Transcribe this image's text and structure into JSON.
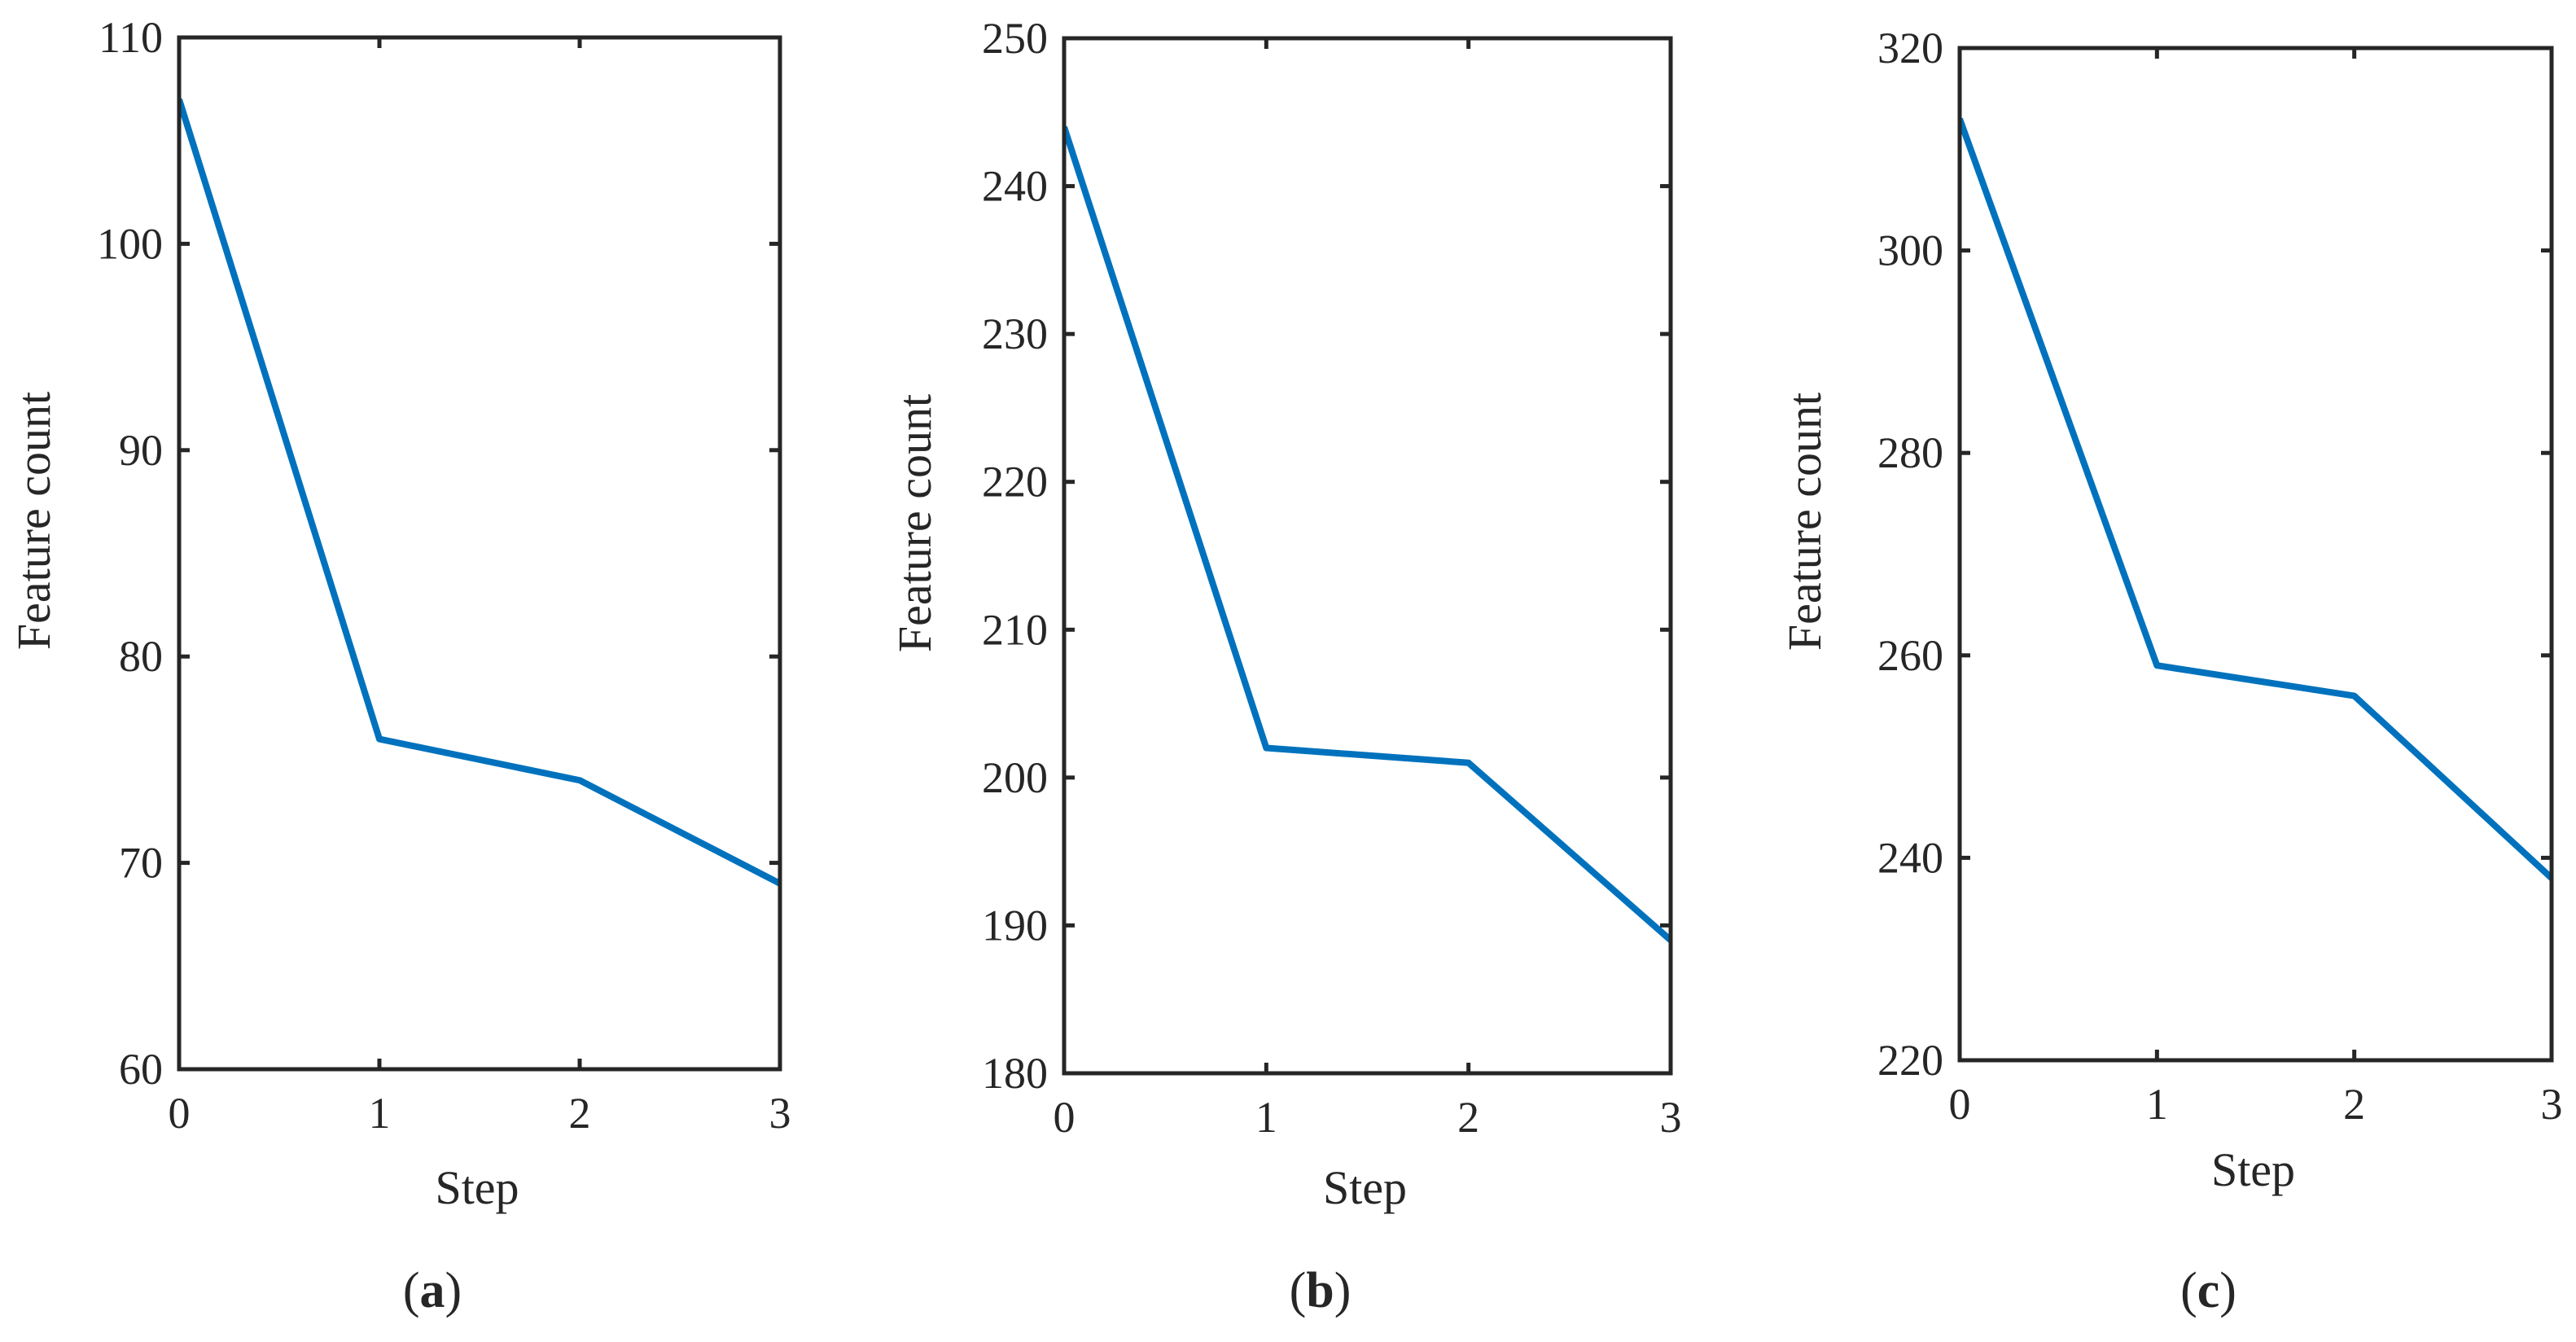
{
  "figure": {
    "panels": [
      "a",
      "b",
      "c"
    ]
  },
  "chart_data": [
    {
      "type": "line",
      "panel_label": "(a)",
      "panel_letter": "a",
      "title": "",
      "xlabel": "Step",
      "ylabel": "Feature count",
      "x": [
        0,
        1,
        2,
        3
      ],
      "series": [
        {
          "name": "Feature count",
          "values": [
            107,
            76,
            74,
            69
          ],
          "color": "#0072BD"
        }
      ],
      "xlim": [
        0,
        3
      ],
      "ylim": [
        60,
        110
      ],
      "xticks": [
        0,
        1,
        2,
        3
      ],
      "yticks": [
        60,
        70,
        80,
        90,
        100,
        110
      ],
      "grid": false,
      "legend": null
    },
    {
      "type": "line",
      "panel_label": "(b)",
      "panel_letter": "b",
      "title": "",
      "xlabel": "Step",
      "ylabel": "Feature count",
      "x": [
        0,
        1,
        2,
        3
      ],
      "series": [
        {
          "name": "Feature count",
          "values": [
            244,
            202,
            201,
            189
          ],
          "color": "#0072BD"
        }
      ],
      "xlim": [
        0,
        3
      ],
      "ylim": [
        180,
        250
      ],
      "xticks": [
        0,
        1,
        2,
        3
      ],
      "yticks": [
        180,
        190,
        200,
        210,
        220,
        230,
        240,
        250
      ],
      "grid": false,
      "legend": null
    },
    {
      "type": "line",
      "panel_label": "(c)",
      "panel_letter": "c",
      "title": "",
      "xlabel": "Step",
      "ylabel": "Feature count",
      "x": [
        0,
        1,
        2,
        3
      ],
      "series": [
        {
          "name": "Feature count",
          "values": [
            313,
            259,
            256,
            238
          ],
          "color": "#0072BD"
        }
      ],
      "xlim": [
        0,
        3
      ],
      "ylim": [
        220,
        320
      ],
      "xticks": [
        0,
        1,
        2,
        3
      ],
      "yticks": [
        220,
        240,
        260,
        280,
        300,
        320
      ],
      "grid": false,
      "legend": null
    }
  ],
  "colors": {
    "axis": "#262626",
    "series": "#0072BD",
    "background": "#ffffff"
  }
}
